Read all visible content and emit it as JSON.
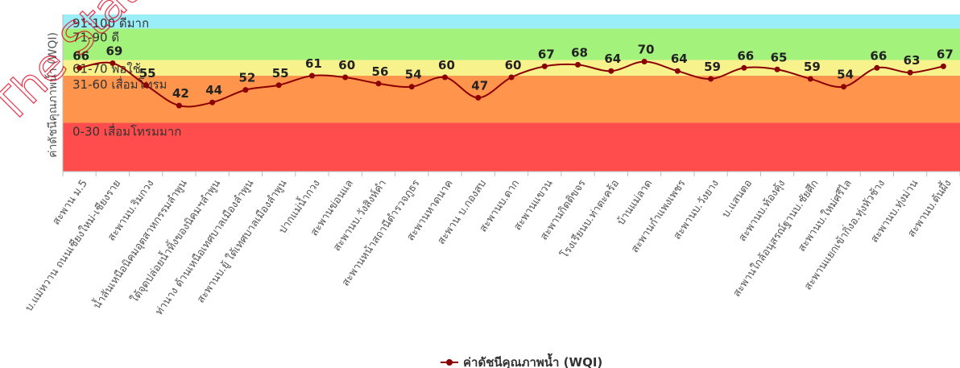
{
  "chart_data": {
    "type": "line",
    "ylabel": "ค่าดัชนีคุณภาพน้ำ (WQI)",
    "ylim": [
      0,
      100
    ],
    "bands": [
      {
        "from": 91,
        "to": 100,
        "label": "91-100 ดีมาก",
        "color": "#99eef7"
      },
      {
        "from": 71,
        "to": 90,
        "label": "71-90 ดี",
        "color": "#a3f27c"
      },
      {
        "from": 61,
        "to": 70,
        "label": "61-70 พอใช้",
        "color": "#f7f28c"
      },
      {
        "from": 31,
        "to": 60,
        "label": "31-60 เสื่อมโทรม",
        "color": "#ff944d"
      },
      {
        "from": 0,
        "to": 30,
        "label": "0-30 เสื่อมโทรมมาก",
        "color": "#ff4c4c"
      }
    ],
    "categories": [
      "สะพาน ม.5",
      "บ.แม่หวาน ถนนเชียงใหม่-เชียงราย",
      "สะพานบ.ริมกวง",
      "น้ำลันเหนือนิคมอุตสาหกรรมลำพูน",
      "ใต้จุดปล่อยน้ำทิ้งของนิคมฯลำพูน",
      "ท่านาง ด้านเหนือเทศบาลเมืองลำพูน",
      "สะพานบ.ยู้ ใต้เทศบาลเมืองลำพูน",
      "ปากแม่น้ำกวง",
      "สะพานข่อนแล",
      "สะพานบ.วังสิงห์คำ",
      "สะพานหน้าสถานีตำรวจภูธร",
      "สะพานหาดนาค",
      "สะพาน บ.กองสบ",
      "สะพานบ.ดาก",
      "สะพานแขวน",
      "สะพานกิตติขจร",
      "โรงเรียนบ.ท่าตะคร้อ",
      "บ้านแม่ลาด",
      "สะพานกำแพงเพชร",
      "สะพานบ.วังยาง",
      "บ.แสนตอ",
      "สะพานบ.ท้องคุ้ง",
      "สะพานใกล้อนุสรณ์ฐานบ.ชัยศึก",
      "สะพานบ.ใหม่ศรีไล",
      "สะพานแยกเข้ากิ่งอ.ทุ่งหัวช้าง",
      "สะพานบ.ทุ่งม่าน",
      "สะพานบ.ต้นผึ้ง"
    ],
    "series": [
      {
        "name": "ค่าดัชนีคุณภาพน้ำ (WQI)",
        "color": "#8b0000",
        "values": [
          66,
          69,
          55,
          42,
          44,
          52,
          55,
          61,
          60,
          56,
          54,
          60,
          47,
          60,
          67,
          68,
          64,
          70,
          64,
          59,
          66,
          65,
          59,
          54,
          66,
          63,
          67
        ]
      }
    ],
    "legend_position": "bottom-center",
    "grid": false
  },
  "watermark_text": "The State"
}
